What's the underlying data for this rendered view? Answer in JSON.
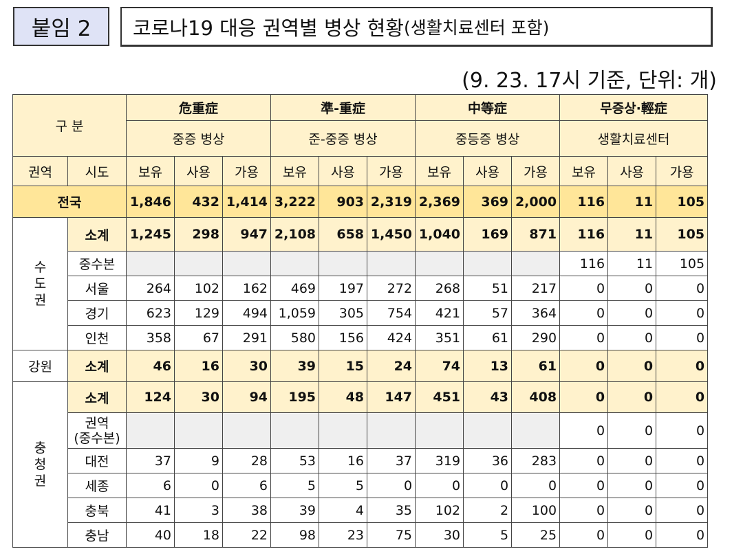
{
  "header": {
    "label": "붙임 2",
    "title_main": "코로나19 대응 권역별 병상 현황",
    "title_sub": "(생활치료센터 포함)",
    "basis": "(9. 23. 17시 기준, 단위: 개)"
  },
  "table": {
    "corner": "구 분",
    "groups": [
      {
        "hanja": "危重症",
        "name": "중증 병상"
      },
      {
        "hanja": "準-重症",
        "name": "준-중증 병상"
      },
      {
        "hanja": "中等症",
        "name": "중등증 병상"
      },
      {
        "hanja": "무증상·輕症",
        "name": "생활치료센터"
      }
    ],
    "region_col": "권역",
    "sido_col": "시도",
    "metrics": [
      "보유",
      "사용",
      "가용"
    ],
    "total": {
      "label": "전국",
      "values": [
        "1,846",
        "432",
        "1,414",
        "3,222",
        "903",
        "2,319",
        "2,369",
        "369",
        "2,000",
        "116",
        "11",
        "105"
      ]
    },
    "capital": {
      "region": "수도권",
      "region_chars": [
        "수",
        "도",
        "권"
      ],
      "rows": [
        {
          "sido": "소계",
          "values": [
            "1,245",
            "298",
            "947",
            "2,108",
            "658",
            "1,450",
            "1,040",
            "169",
            "871",
            "116",
            "11",
            "105"
          ]
        },
        {
          "sido": "중수본",
          "values": [
            "",
            "",
            "",
            "",
            "",
            "",
            "",
            "",
            "",
            "116",
            "11",
            "105"
          ]
        },
        {
          "sido": "서울",
          "values": [
            "264",
            "102",
            "162",
            "469",
            "197",
            "272",
            "268",
            "51",
            "217",
            "0",
            "0",
            "0"
          ]
        },
        {
          "sido": "경기",
          "values": [
            "623",
            "129",
            "494",
            "1,059",
            "305",
            "754",
            "421",
            "57",
            "364",
            "0",
            "0",
            "0"
          ]
        },
        {
          "sido": "인천",
          "values": [
            "358",
            "67",
            "291",
            "580",
            "156",
            "424",
            "351",
            "61",
            "290",
            "0",
            "0",
            "0"
          ]
        }
      ]
    },
    "gangwon": {
      "region": "강원",
      "rows": [
        {
          "sido": "소계",
          "values": [
            "46",
            "16",
            "30",
            "39",
            "15",
            "24",
            "74",
            "13",
            "61",
            "0",
            "0",
            "0"
          ]
        }
      ]
    },
    "chungcheong": {
      "region": "충청권",
      "region_chars": [
        "충",
        "청",
        "권"
      ],
      "rows": [
        {
          "sido": "소계",
          "values": [
            "124",
            "30",
            "94",
            "195",
            "48",
            "147",
            "451",
            "43",
            "408",
            "0",
            "0",
            "0"
          ]
        },
        {
          "sido": "권역",
          "sido2": "(중수본)",
          "values": [
            "",
            "",
            "",
            "",
            "",
            "",
            "",
            "",
            "",
            "0",
            "0",
            "0"
          ]
        },
        {
          "sido": "대전",
          "values": [
            "37",
            "9",
            "28",
            "53",
            "16",
            "37",
            "319",
            "36",
            "283",
            "0",
            "0",
            "0"
          ]
        },
        {
          "sido": "세종",
          "values": [
            "6",
            "0",
            "6",
            "5",
            "5",
            "0",
            "0",
            "0",
            "0",
            "0",
            "0",
            "0"
          ]
        },
        {
          "sido": "충북",
          "values": [
            "41",
            "3",
            "38",
            "39",
            "4",
            "35",
            "102",
            "2",
            "100",
            "0",
            "0",
            "0"
          ]
        },
        {
          "sido": "충남",
          "values": [
            "40",
            "18",
            "22",
            "98",
            "23",
            "75",
            "30",
            "5",
            "25",
            "0",
            "0",
            "0"
          ]
        }
      ]
    }
  }
}
